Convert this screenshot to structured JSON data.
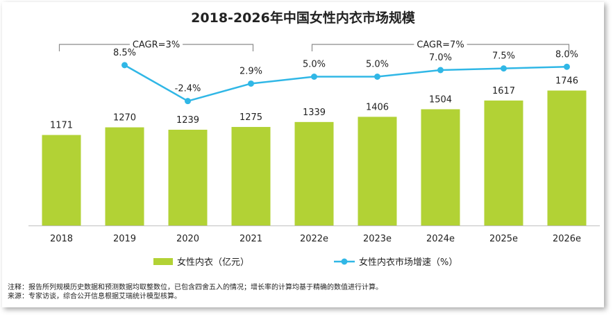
{
  "chart_data": {
    "type": "bar",
    "title": "2018-2026年中国女性内衣市场规模",
    "categories": [
      "2018",
      "2019",
      "2020",
      "2021",
      "2022e",
      "2023e",
      "2024e",
      "2025e",
      "2026e"
    ],
    "series": [
      {
        "name": "女性内衣（亿元）",
        "type": "bar",
        "color": "#b2d235",
        "values": [
          1171,
          1270,
          1239,
          1275,
          1339,
          1406,
          1504,
          1617,
          1746
        ]
      },
      {
        "name": "女性内衣市场增速（%）",
        "type": "line",
        "color": "#30b7e6",
        "values": [
          null,
          8.5,
          -2.4,
          2.9,
          5.0,
          5.0,
          7.0,
          7.5,
          8.0
        ],
        "labels": [
          "",
          "8.5%",
          "-2.4%",
          "2.9%",
          "5.0%",
          "5.0%",
          "7.0%",
          "7.5%",
          "8.0%"
        ]
      }
    ],
    "bar_labels": [
      "1171",
      "1270",
      "1239",
      "1275",
      "1339",
      "1406",
      "1504",
      "1617",
      "1746"
    ],
    "ylim": [
      0,
      1800
    ],
    "growth_ylim": [
      -10,
      15
    ],
    "cagr_annotations": [
      {
        "label": "CAGR=3%",
        "from": "2018",
        "to": "2021"
      },
      {
        "label": "CAGR=7%",
        "from": "2022e",
        "to": "2026e"
      }
    ],
    "legend_position": "bottom"
  },
  "footnotes": {
    "note": "注释：报告所列规模历史数据和预测数据均取整数位，已包含四舍五入的情况；增长率的计算均基于精确的数值进行计算。",
    "source": "来源：专家访谈，综合公开信息根据艾瑞统计模型核算。"
  }
}
